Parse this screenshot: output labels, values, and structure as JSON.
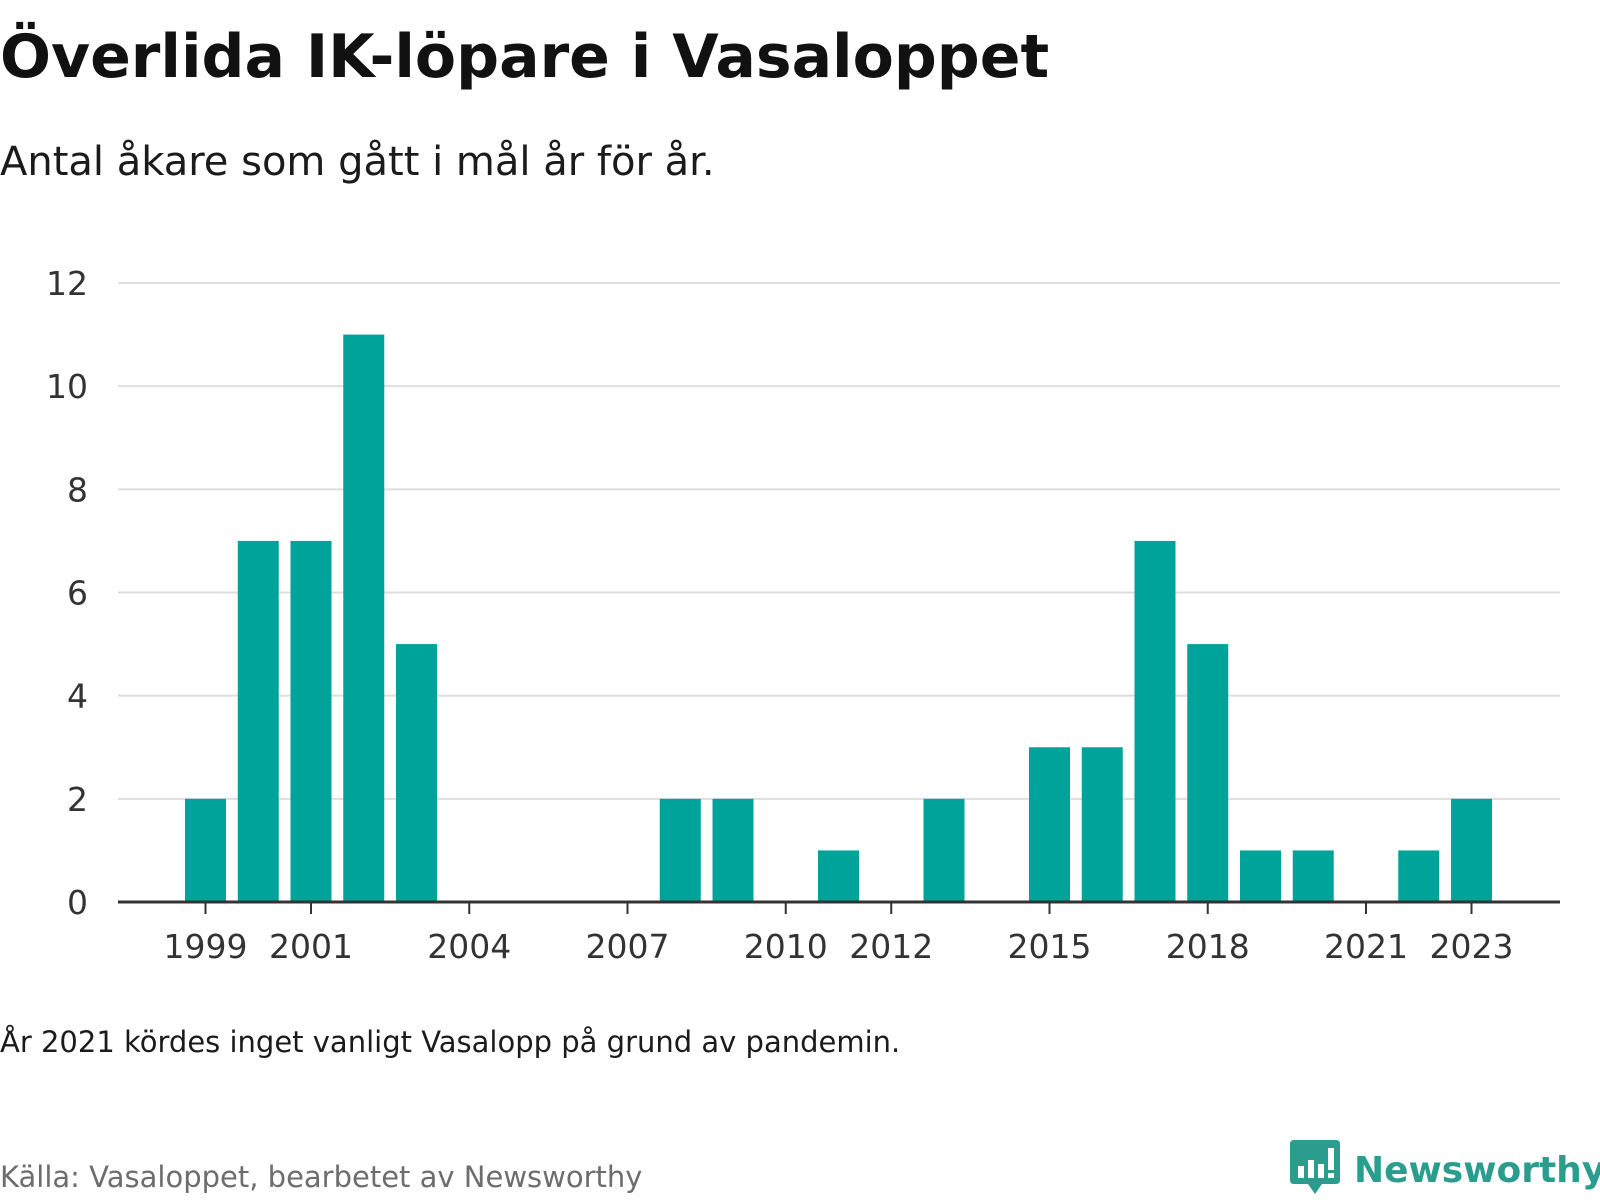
{
  "header": {
    "title": "Överlida IK-löpare i Vasaloppet",
    "subtitle": "Antal åkare som gått i mål år för år."
  },
  "footer": {
    "note": "År 2021 kördes inget vanligt Vasalopp på grund av pandemin.",
    "source": "Källa: Vasaloppet, bearbetet av Newsworthy",
    "brand": "Newsworthy"
  },
  "colors": {
    "bar": "#00a39a",
    "grid": "#dedede",
    "axis": "#333333",
    "brand": "#2a9d8f"
  },
  "icons": {
    "brand_logo": "newsworthy-bar-chart-bubble-icon"
  },
  "chart_data": {
    "type": "bar",
    "title": "Överlida IK-löpare i Vasaloppet",
    "subtitle": "Antal åkare som gått i mål år för år.",
    "xlabel": "",
    "ylabel": "",
    "categories": [
      "1999",
      "2000",
      "2001",
      "2002",
      "2003",
      "2004",
      "2005",
      "2006",
      "2007",
      "2008",
      "2009",
      "2010",
      "2011",
      "2012",
      "2013",
      "2014",
      "2015",
      "2016",
      "2017",
      "2018",
      "2019",
      "2020",
      "2021",
      "2022",
      "2023"
    ],
    "values": [
      2,
      7,
      7,
      11,
      5,
      0,
      0,
      0,
      0,
      2,
      2,
      0,
      1,
      0,
      2,
      0,
      3,
      3,
      7,
      5,
      1,
      1,
      0,
      1,
      2
    ],
    "x_tick_labels": [
      "1999",
      "2001",
      "2004",
      "2007",
      "2010",
      "2012",
      "2015",
      "2018",
      "2021",
      "2023"
    ],
    "y_ticks": [
      0,
      2,
      4,
      6,
      8,
      10,
      12
    ],
    "ylim": [
      0,
      12
    ],
    "grid": true,
    "legend": "none"
  }
}
